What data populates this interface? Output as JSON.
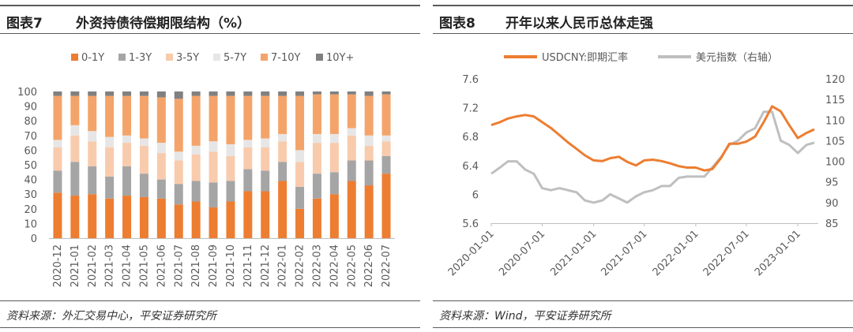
{
  "left": {
    "fig_num": "图表7",
    "title": "外资持债待偿期限结构（%）",
    "source": "资料来源：外汇交易中心，平安证券研究所"
  },
  "right": {
    "fig_num": "图表8",
    "title": "开年以来人民币总体走强",
    "source": "资料来源：Wind，平安证券研究所"
  },
  "chart_data": [
    {
      "type": "bar",
      "stacked": true,
      "title": "外资持债待偿期限结构（%）",
      "categories": [
        "2020-12",
        "2021-01",
        "2021-02",
        "2021-03",
        "2021-04",
        "2021-05",
        "2021-06",
        "2021-07",
        "2021-08",
        "2021-09",
        "2021-10",
        "2021-11",
        "2021-12",
        "2022-01",
        "2022-02",
        "2022-03",
        "2022-04",
        "2022-05",
        "2022-06",
        "2022-07"
      ],
      "ylim": [
        0,
        100
      ],
      "yticks": [
        0,
        10,
        20,
        30,
        40,
        50,
        60,
        70,
        80,
        90,
        100
      ],
      "legend_position": "top",
      "grid": false,
      "series": [
        {
          "name": "0-1Y",
          "color": "#ED7D31",
          "values": [
            31,
            29,
            30,
            27,
            29,
            28,
            27,
            23,
            25,
            21,
            25,
            32,
            32,
            39,
            20,
            27,
            30,
            39,
            36,
            44
          ]
        },
        {
          "name": "1-3Y",
          "color": "#A5A5A5",
          "values": [
            15,
            23,
            19,
            15,
            20,
            16,
            13,
            14,
            14,
            17,
            14,
            15,
            14,
            13,
            15,
            17,
            15,
            14,
            17,
            12
          ]
        },
        {
          "name": "3-5Y",
          "color": "#F8CBAD",
          "values": [
            16,
            18,
            17,
            20,
            16,
            19,
            18,
            16,
            18,
            21,
            17,
            15,
            16,
            14,
            17,
            21,
            20,
            17,
            10,
            10
          ]
        },
        {
          "name": "5-7Y",
          "color": "#E7E6E6",
          "values": [
            5,
            7,
            7,
            7,
            5,
            5,
            7,
            6,
            6,
            7,
            8,
            5,
            6,
            5,
            8,
            6,
            6,
            5,
            7,
            4
          ]
        },
        {
          "name": "7-10Y",
          "color": "#F4A46A",
          "values": [
            30,
            20,
            24,
            28,
            27,
            29,
            31,
            36,
            34,
            31,
            33,
            30,
            29,
            26,
            37,
            27,
            27,
            23,
            27,
            28
          ]
        },
        {
          "name": "10Y+",
          "color": "#808080",
          "values": [
            3,
            3,
            3,
            3,
            3,
            3,
            4,
            5,
            3,
            3,
            3,
            3,
            3,
            3,
            3,
            2,
            2,
            2,
            3,
            2
          ]
        }
      ]
    },
    {
      "type": "line",
      "title": "开年以来人民币总体走强",
      "legend_position": "top",
      "grid": false,
      "x_tick_labels": [
        "2020-01-01",
        "2020-07-01",
        "2021-01-01",
        "2021-07-01",
        "2022-01-01",
        "2022-07-01",
        "2023-01-01"
      ],
      "xlim": [
        "2020-01-01",
        "2023-03-15"
      ],
      "y_left": {
        "lim": [
          5.6,
          7.6
        ],
        "ticks": [
          5.6,
          6,
          6.4,
          6.8,
          7.2,
          7.6
        ]
      },
      "y_right": {
        "lim": [
          85,
          120
        ],
        "ticks": [
          85,
          90,
          95,
          100,
          105,
          110,
          115,
          120
        ]
      },
      "series": [
        {
          "name": "USDCNY:即期汇率",
          "axis": "left",
          "color": "#ED7D31",
          "x": [
            "2020-01-01",
            "2020-02-01",
            "2020-03-01",
            "2020-04-01",
            "2020-05-01",
            "2020-06-01",
            "2020-07-01",
            "2020-08-01",
            "2020-09-01",
            "2020-10-01",
            "2020-11-01",
            "2020-12-01",
            "2021-01-01",
            "2021-02-01",
            "2021-03-01",
            "2021-04-01",
            "2021-05-01",
            "2021-06-01",
            "2021-07-01",
            "2021-08-01",
            "2021-09-01",
            "2021-10-01",
            "2021-11-01",
            "2021-12-01",
            "2022-01-01",
            "2022-02-01",
            "2022-03-01",
            "2022-04-01",
            "2022-05-01",
            "2022-06-01",
            "2022-07-01",
            "2022-08-01",
            "2022-09-01",
            "2022-10-01",
            "2022-11-01",
            "2022-12-01",
            "2023-01-01",
            "2023-02-01",
            "2023-03-01"
          ],
          "y": [
            6.96,
            7.0,
            7.05,
            7.08,
            7.1,
            7.08,
            7.0,
            6.92,
            6.82,
            6.72,
            6.63,
            6.54,
            6.47,
            6.46,
            6.5,
            6.52,
            6.45,
            6.4,
            6.47,
            6.48,
            6.46,
            6.43,
            6.39,
            6.37,
            6.37,
            6.33,
            6.35,
            6.5,
            6.7,
            6.7,
            6.73,
            6.8,
            7.0,
            7.22,
            7.15,
            6.96,
            6.78,
            6.85,
            6.9
          ]
        },
        {
          "name": "美元指数（右轴）",
          "axis": "right",
          "color": "#BFBFBF",
          "x": [
            "2020-01-01",
            "2020-02-01",
            "2020-03-01",
            "2020-04-01",
            "2020-05-01",
            "2020-06-01",
            "2020-07-01",
            "2020-08-01",
            "2020-09-01",
            "2020-10-01",
            "2020-11-01",
            "2020-12-01",
            "2021-01-01",
            "2021-02-01",
            "2021-03-01",
            "2021-04-01",
            "2021-05-01",
            "2021-06-01",
            "2021-07-01",
            "2021-08-01",
            "2021-09-01",
            "2021-10-01",
            "2021-11-01",
            "2021-12-01",
            "2022-01-01",
            "2022-02-01",
            "2022-03-01",
            "2022-04-01",
            "2022-05-01",
            "2022-06-01",
            "2022-07-01",
            "2022-08-01",
            "2022-09-01",
            "2022-10-01",
            "2022-11-01",
            "2022-12-01",
            "2023-01-01",
            "2023-02-01",
            "2023-03-01"
          ],
          "y": [
            97,
            98.5,
            100,
            100,
            98,
            97,
            93.5,
            93,
            93.5,
            93,
            92.5,
            90.5,
            90,
            90.5,
            92,
            91,
            90,
            91.5,
            92.5,
            93,
            94,
            94,
            96,
            96.3,
            96.3,
            96.3,
            98.5,
            101,
            104,
            105,
            107,
            108,
            112,
            112,
            105,
            104,
            102,
            104,
            104.5
          ]
        }
      ]
    }
  ]
}
